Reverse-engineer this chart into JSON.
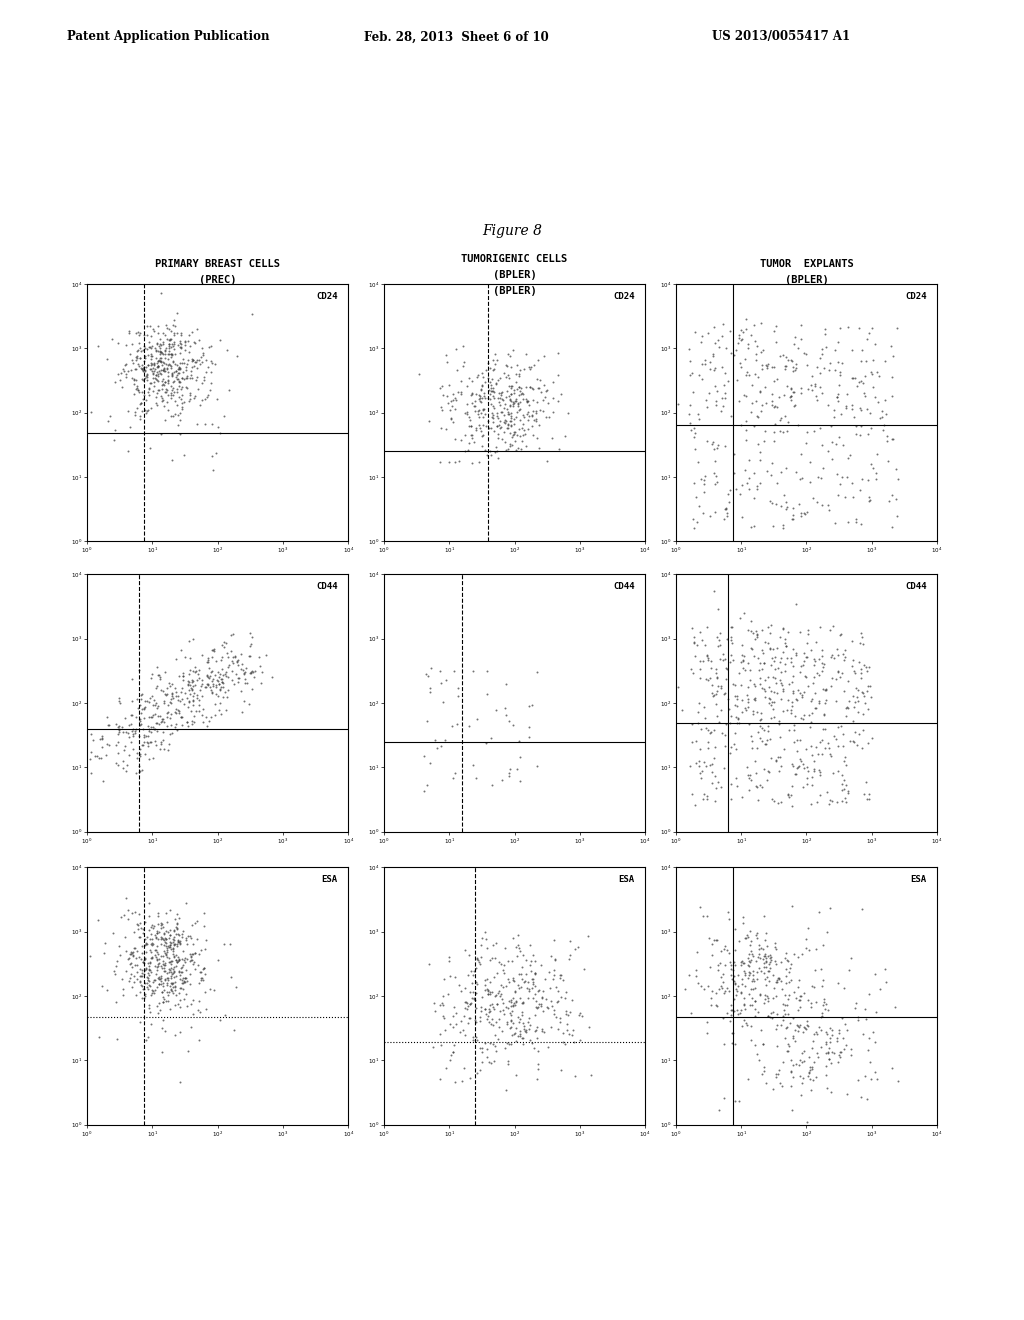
{
  "header_left": "Patent Application Publication",
  "header_mid": "Feb. 28, 2013  Sheet 6 of 10",
  "header_right": "US 2013/0055417 A1",
  "figure_label": "Figure 8",
  "col_titles": [
    [
      "PRIMARY BREAST CELLS",
      "(PREC)"
    ],
    [
      "TUMORIGENIC CELLS",
      "(BPLER)",
      "(BPLER)"
    ],
    [
      "TUMOR  EXPLANTS",
      "(BPLER)"
    ]
  ],
  "row_markers": [
    "CD24",
    "CD44",
    "ESA"
  ],
  "background_color": "#ffffff",
  "dot_color": "#444444"
}
